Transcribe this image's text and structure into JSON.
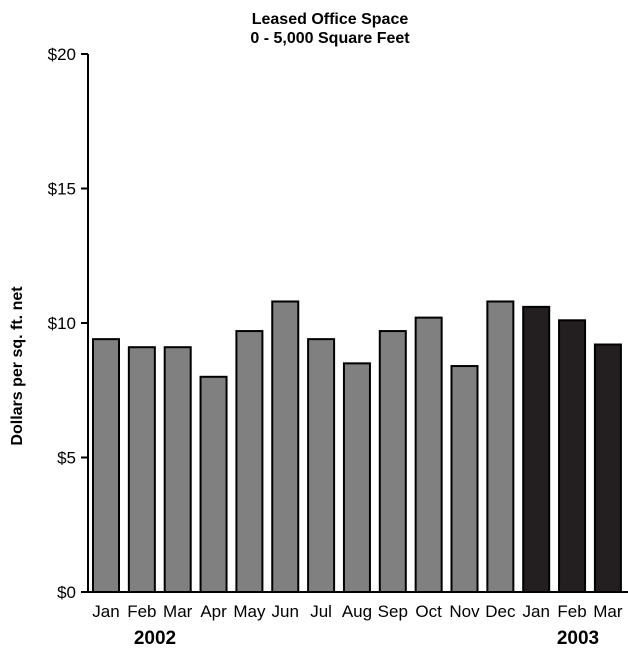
{
  "chart_data": {
    "type": "bar",
    "title": "Leased Office Space",
    "subtitle": "0 - 5,000 Square Feet",
    "ylabel": "Dollars per sq. ft. net",
    "xlabel": "",
    "ylim": [
      0,
      20
    ],
    "yticks": [
      0,
      5,
      10,
      15,
      20
    ],
    "ytick_labels": [
      "$0",
      "$5",
      "$10",
      "$15",
      "$20"
    ],
    "categories": [
      "Jan",
      "Feb",
      "Mar",
      "Apr",
      "May",
      "Jun",
      "Jul",
      "Aug",
      "Sep",
      "Oct",
      "Nov",
      "Dec",
      "Jan",
      "Feb",
      "Mar"
    ],
    "values": [
      9.4,
      9.1,
      9.1,
      8.0,
      9.7,
      10.8,
      9.4,
      8.5,
      9.7,
      10.2,
      8.4,
      10.8,
      10.6,
      10.1,
      9.2
    ],
    "bar_years": [
      "2002",
      "2002",
      "2002",
      "2002",
      "2002",
      "2002",
      "2002",
      "2002",
      "2002",
      "2002",
      "2002",
      "2002",
      "2003",
      "2003",
      "2003"
    ],
    "year_labels": [
      "2002",
      "2003"
    ],
    "grid": false,
    "legend": "none",
    "colors": {
      "2002": "#808080",
      "2003": "#231f20",
      "axis": "#000000",
      "edge": "#000000"
    }
  }
}
